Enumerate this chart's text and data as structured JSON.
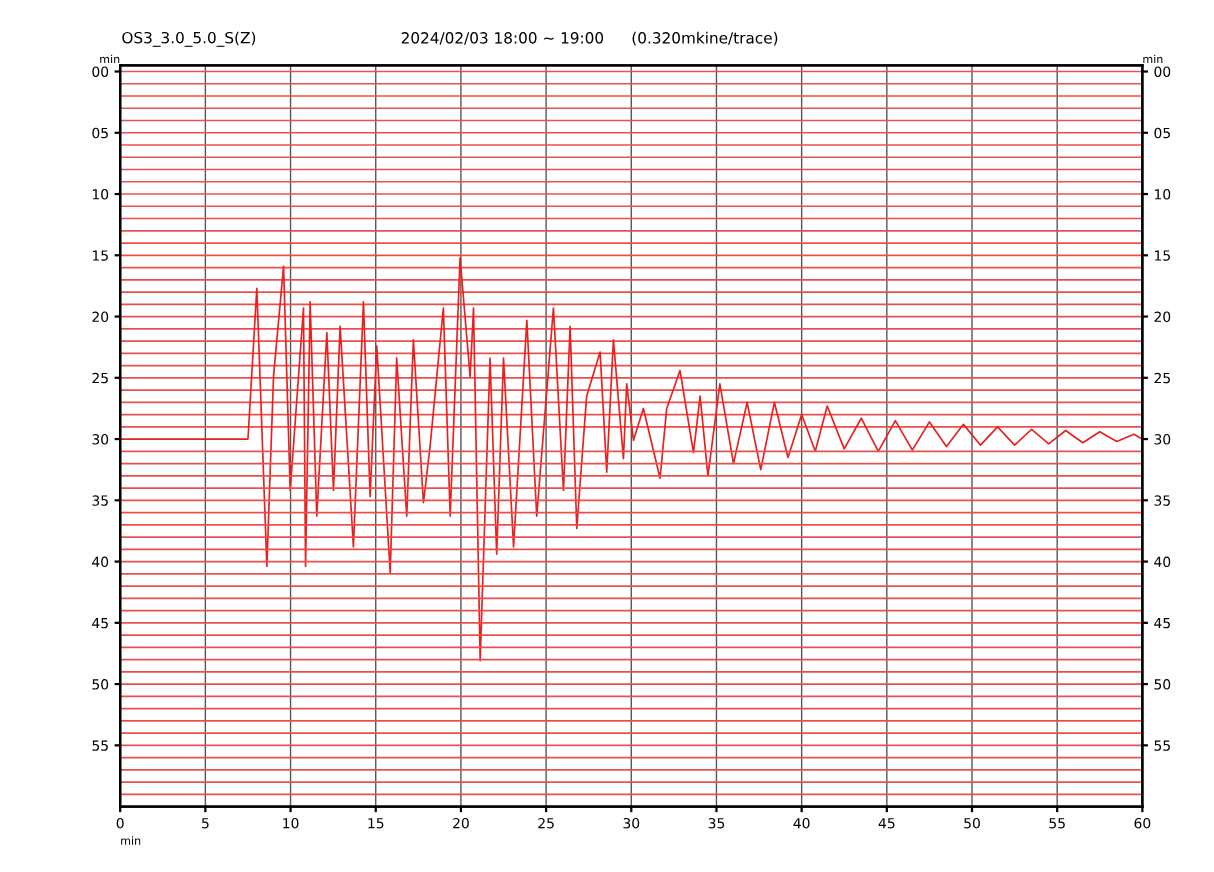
{
  "chart_data": {
    "type": "line",
    "title": "OS3_3.0_5.0_S(Z)",
    "subtitle": "2024/02/03 18:00 ~ 19:00",
    "annotations": [
      "(0.320mkine/trace)"
    ],
    "xlabel": "min",
    "ylabel": "min",
    "y2label": "min",
    "xlim": [
      0,
      60
    ],
    "xticks": [
      0,
      5,
      10,
      15,
      20,
      25,
      30,
      35,
      40,
      45,
      50,
      55,
      60
    ],
    "ylim": [
      60,
      -0.5
    ],
    "yticks": [
      {
        "value": 0,
        "label": "00"
      },
      {
        "value": 5,
        "label": "05"
      },
      10,
      15,
      20,
      25,
      30,
      35,
      40,
      45,
      50,
      55
    ],
    "y2lim": [
      60,
      -0.5
    ],
    "y2ticks": [
      {
        "value": 0,
        "label": "00"
      },
      {
        "value": 5,
        "label": "05"
      },
      10,
      15,
      20,
      25,
      30,
      35,
      40,
      45,
      50,
      55
    ],
    "grid": "x",
    "marker": "none",
    "line_style": "solid",
    "series": [
      {
        "color": "#e85050",
        "x": [
          0,
          60
        ],
        "values": [
          0,
          0
        ]
      },
      {
        "color": "#e85050",
        "x": [
          0,
          60
        ],
        "values": [
          1,
          1
        ]
      },
      {
        "color": "#e85050",
        "x": [
          0,
          60
        ],
        "values": [
          2,
          2
        ]
      },
      {
        "color": "#e85050",
        "x": [
          0,
          60
        ],
        "values": [
          3,
          3
        ]
      },
      {
        "color": "#e85050",
        "x": [
          0,
          60
        ],
        "values": [
          4,
          4
        ]
      },
      {
        "color": "#e85050",
        "x": [
          0,
          60
        ],
        "values": [
          5,
          5
        ]
      },
      {
        "color": "#e85050",
        "x": [
          0,
          60
        ],
        "values": [
          6,
          6
        ]
      },
      {
        "color": "#e85050",
        "x": [
          0,
          60
        ],
        "values": [
          7,
          7
        ]
      },
      {
        "color": "#e85050",
        "x": [
          0,
          60
        ],
        "values": [
          8,
          8
        ]
      },
      {
        "color": "#e85050",
        "x": [
          0,
          60
        ],
        "values": [
          9,
          9
        ]
      },
      {
        "color": "#e85050",
        "x": [
          0,
          60
        ],
        "values": [
          10,
          10
        ]
      },
      {
        "color": "#e85050",
        "x": [
          0,
          60
        ],
        "values": [
          11,
          11
        ]
      },
      {
        "color": "#e85050",
        "x": [
          0,
          60
        ],
        "values": [
          12,
          12
        ]
      },
      {
        "color": "#e85050",
        "x": [
          0,
          60
        ],
        "values": [
          13,
          13
        ]
      },
      {
        "color": "#e85050",
        "x": [
          0,
          60
        ],
        "values": [
          14,
          14
        ]
      },
      {
        "color": "#e85050",
        "x": [
          0,
          60
        ],
        "values": [
          15,
          15
        ]
      },
      {
        "color": "#e85050",
        "x": [
          0,
          60
        ],
        "values": [
          16,
          16
        ]
      },
      {
        "color": "#e85050",
        "x": [
          0,
          60
        ],
        "values": [
          17,
          17
        ]
      },
      {
        "color": "#e85050",
        "x": [
          0,
          60
        ],
        "values": [
          18,
          18
        ]
      },
      {
        "color": "#e85050",
        "x": [
          0,
          60
        ],
        "values": [
          19,
          19
        ]
      },
      {
        "color": "#e85050",
        "x": [
          0,
          60
        ],
        "values": [
          20,
          20
        ]
      },
      {
        "color": "#e85050",
        "x": [
          0,
          60
        ],
        "values": [
          21,
          21
        ]
      },
      {
        "color": "#e85050",
        "x": [
          0,
          60
        ],
        "values": [
          22,
          22
        ]
      },
      {
        "color": "#e85050",
        "x": [
          0,
          60
        ],
        "values": [
          23,
          23
        ]
      },
      {
        "color": "#e85050",
        "x": [
          0,
          60
        ],
        "values": [
          24,
          24
        ]
      },
      {
        "color": "#e85050",
        "x": [
          0,
          60
        ],
        "values": [
          25,
          25
        ]
      },
      {
        "color": "#e85050",
        "x": [
          0,
          60
        ],
        "values": [
          26,
          26
        ]
      },
      {
        "color": "#e85050",
        "x": [
          0,
          60
        ],
        "values": [
          27,
          27
        ]
      },
      {
        "color": "#e85050",
        "x": [
          0,
          60
        ],
        "values": [
          28,
          28
        ]
      },
      {
        "color": "#e85050",
        "x": [
          0,
          60
        ],
        "values": [
          29,
          29
        ]
      },
      {
        "color": "#e82020",
        "x": [
          0,
          7.5,
          8.02,
          8.61,
          9.0,
          9.59,
          9.98,
          10.76,
          10.88,
          11.15,
          11.54,
          12.13,
          12.52,
          12.91,
          13.69,
          14.28,
          14.67,
          15.06,
          15.85,
          16.23,
          16.82,
          17.21,
          17.8,
          18.19,
          18.97,
          19.37,
          19.95,
          20.54,
          20.74,
          21.13,
          21.71,
          22.1,
          22.5,
          23.09,
          23.87,
          24.45,
          25.43,
          26.02,
          26.41,
          26.8,
          27.38,
          28.17,
          28.56,
          28.95,
          29.54,
          29.73,
          30.13,
          30.71,
          31.69,
          32.08,
          32.86,
          33.65,
          34.04,
          34.5,
          35.2,
          36,
          36.8,
          37.6,
          38.4,
          39.2,
          40,
          40.8,
          41.5,
          42.5,
          43.5,
          44.5,
          45.5,
          46.5,
          47.5,
          48.5,
          49.5,
          50.5,
          51.5,
          52.5,
          53.5,
          54.5,
          55.5,
          56.5,
          57.5,
          58.5,
          59.5,
          60
        ],
        "values": [
          30,
          30,
          17.7,
          40.4,
          24.9,
          15.9,
          34.2,
          19.3,
          40.4,
          18.8,
          36.3,
          21.3,
          34.2,
          20.8,
          38.8,
          18.8,
          34.7,
          22.4,
          40.9,
          23.4,
          36.3,
          21.9,
          35.2,
          30.6,
          19.3,
          36.3,
          15.2,
          24.9,
          19.3,
          48.1,
          23.4,
          39.4,
          23.4,
          38.8,
          20.3,
          36.3,
          19.3,
          34.2,
          20.8,
          37.3,
          26.5,
          22.9,
          32.7,
          21.9,
          31.6,
          25.5,
          30.1,
          27.5,
          33.2,
          27.5,
          24.4,
          31.1,
          26.5,
          33,
          25.5,
          32,
          27,
          32.5,
          27,
          31.5,
          28,
          31,
          27.3,
          30.8,
          28.3,
          31,
          28.5,
          30.9,
          28.6,
          30.6,
          28.8,
          30.5,
          29,
          30.5,
          29.2,
          30.4,
          29.3,
          30.3,
          29.4,
          30.2,
          29.6,
          30
        ]
      },
      {
        "color": "#e85050",
        "x": [
          0,
          60
        ],
        "values": [
          31,
          31
        ]
      },
      {
        "color": "#e85050",
        "x": [
          0,
          60
        ],
        "values": [
          32,
          32
        ]
      },
      {
        "color": "#e85050",
        "x": [
          0,
          60
        ],
        "values": [
          33,
          33
        ]
      },
      {
        "color": "#e85050",
        "x": [
          0,
          60
        ],
        "values": [
          34,
          34
        ]
      },
      {
        "color": "#e85050",
        "x": [
          0,
          60
        ],
        "values": [
          35,
          35
        ]
      },
      {
        "color": "#e85050",
        "x": [
          0,
          60
        ],
        "values": [
          36,
          36
        ]
      },
      {
        "color": "#e85050",
        "x": [
          0,
          60
        ],
        "values": [
          37,
          37
        ]
      },
      {
        "color": "#e85050",
        "x": [
          0,
          60
        ],
        "values": [
          38,
          38
        ]
      },
      {
        "color": "#e85050",
        "x": [
          0,
          60
        ],
        "values": [
          39,
          39
        ]
      },
      {
        "color": "#e85050",
        "x": [
          0,
          60
        ],
        "values": [
          40,
          40
        ]
      },
      {
        "color": "#e85050",
        "x": [
          0,
          60
        ],
        "values": [
          41,
          41
        ]
      },
      {
        "color": "#e85050",
        "x": [
          0,
          60
        ],
        "values": [
          42,
          42
        ]
      },
      {
        "color": "#e85050",
        "x": [
          0,
          60
        ],
        "values": [
          43,
          43
        ]
      },
      {
        "color": "#e85050",
        "x": [
          0,
          60
        ],
        "values": [
          44,
          44
        ]
      },
      {
        "color": "#e85050",
        "x": [
          0,
          60
        ],
        "values": [
          45,
          45
        ]
      },
      {
        "color": "#e85050",
        "x": [
          0,
          60
        ],
        "values": [
          46,
          46
        ]
      },
      {
        "color": "#e85050",
        "x": [
          0,
          60
        ],
        "values": [
          47,
          47
        ]
      },
      {
        "color": "#e85050",
        "x": [
          0,
          60
        ],
        "values": [
          48,
          48
        ]
      },
      {
        "color": "#e85050",
        "x": [
          0,
          60
        ],
        "values": [
          49,
          49
        ]
      },
      {
        "color": "#e85050",
        "x": [
          0,
          60
        ],
        "values": [
          50,
          50
        ]
      },
      {
        "color": "#e85050",
        "x": [
          0,
          60
        ],
        "values": [
          51,
          51
        ]
      },
      {
        "color": "#e85050",
        "x": [
          0,
          60
        ],
        "values": [
          52,
          52
        ]
      },
      {
        "color": "#e85050",
        "x": [
          0,
          60
        ],
        "values": [
          53,
          53
        ]
      },
      {
        "color": "#e85050",
        "x": [
          0,
          60
        ],
        "values": [
          54,
          54
        ]
      },
      {
        "color": "#e85050",
        "x": [
          0,
          60
        ],
        "values": [
          55,
          55
        ]
      },
      {
        "color": "#e85050",
        "x": [
          0,
          60
        ],
        "values": [
          56,
          56
        ]
      },
      {
        "color": "#e85050",
        "x": [
          0,
          60
        ],
        "values": [
          57,
          57
        ]
      },
      {
        "color": "#e85050",
        "x": [
          0,
          60
        ],
        "values": [
          58,
          58
        ]
      },
      {
        "color": "#e85050",
        "x": [
          0,
          60
        ],
        "values": [
          59,
          59
        ]
      }
    ]
  }
}
